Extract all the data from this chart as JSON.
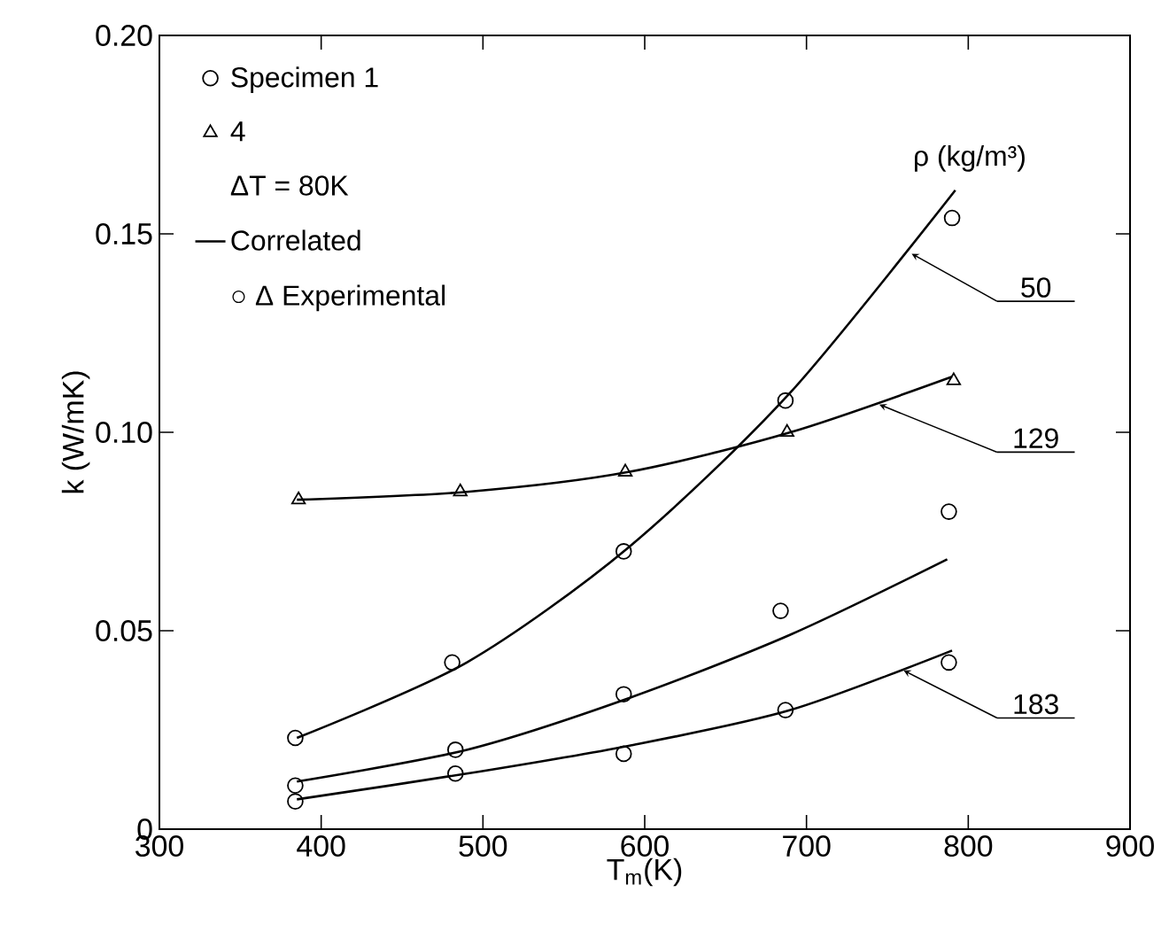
{
  "chart_data": {
    "type": "line",
    "xlabel": "T$_{m}$(K)",
    "ylabel": "k (W/mK)",
    "xlim": [
      300,
      900
    ],
    "ylim": [
      0,
      0.2
    ],
    "xticks": [
      300,
      400,
      500,
      600,
      700,
      800,
      900
    ],
    "yticks": [
      0,
      0.05,
      {
        "value": 0.1,
        "label": "0.10"
      },
      0.15,
      {
        "value": 0.2,
        "label": "0.20"
      }
    ],
    "grid": false,
    "legend": "top left",
    "line_style": "solid",
    "series": [
      {
        "name": "Correlated",
        "color": "#000000",
        "x": [
          385,
          490,
          590,
          690,
          792
        ],
        "values": [
          0.023,
          0.042,
          0.071,
          0.11,
          0.161
        ]
      },
      {
        "color": "#000000",
        "x": [
          385,
          490,
          590,
          690,
          790
        ],
        "values": [
          0.083,
          0.085,
          0.09,
          0.1,
          0.114
        ]
      },
      {
        "color": "#000000",
        "x": [
          385,
          490,
          590,
          690,
          787
        ],
        "values": [
          0.012,
          0.02,
          0.033,
          0.049,
          0.068
        ]
      },
      {
        "color": "#000000",
        "x": [
          385,
          490,
          590,
          690,
          790
        ],
        "values": [
          0.0075,
          0.014,
          0.021,
          0.03,
          0.045
        ]
      },
      {
        "type": "scatter",
        "name": "Specimen 1",
        "marker": "circle",
        "color": "#000000",
        "x": [
          384,
          481,
          587,
          687,
          790,
          384,
          483,
          587,
          684,
          788,
          384,
          483,
          587,
          687,
          788
        ],
        "values": [
          0.023,
          0.042,
          0.07,
          0.108,
          0.154,
          0.011,
          0.02,
          0.034,
          0.055,
          0.08,
          0.007,
          0.014,
          0.019,
          0.03,
          0.042
        ]
      },
      {
        "type": "scatter",
        "name": "4",
        "marker": "triangle",
        "color": "#000000",
        "x": [
          386,
          486,
          588,
          688,
          791
        ],
        "values": [
          0.083,
          0.085,
          0.09,
          0.1,
          0.113
        ]
      }
    ],
    "annotations": [
      "ΔT = 80K",
      "○ Δ Experimental",
      "ρ (kg/m³)",
      {
        "text": "50",
        "x": 765,
        "y": 0.145
      },
      {
        "text": "129",
        "x": 745,
        "y": 0.107
      },
      {
        "text": "183",
        "x": 760,
        "y": 0.04
      }
    ]
  }
}
